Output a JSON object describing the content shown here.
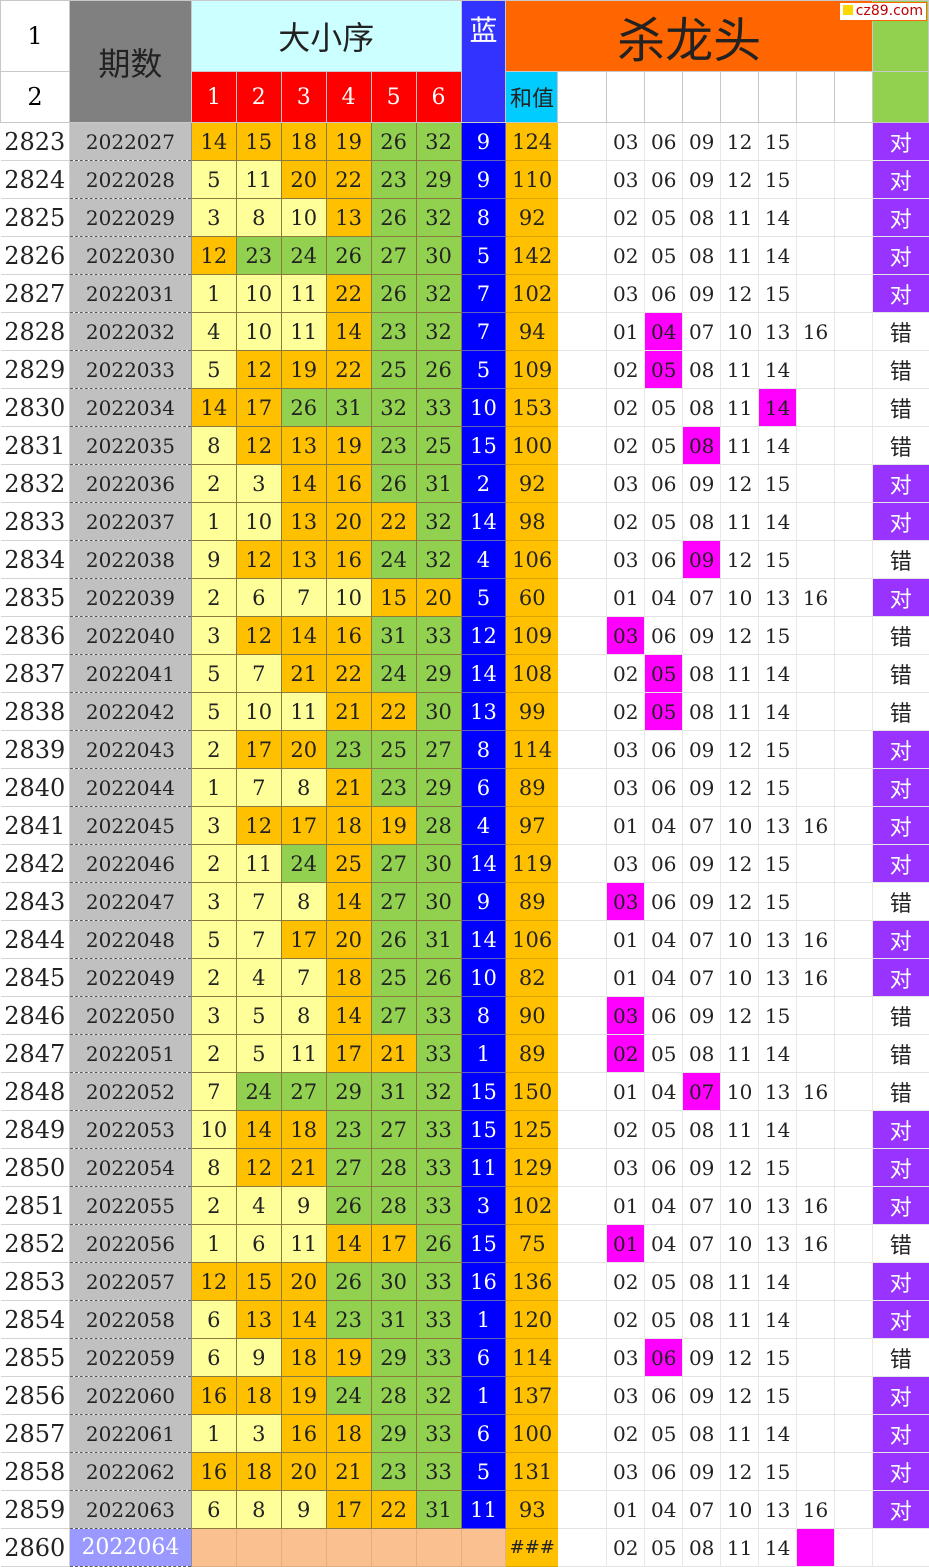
{
  "header": {
    "row1_num": "1",
    "row2_num": "2",
    "period_label": "期数",
    "size_order_label": "大小序",
    "ball_cols": [
      "1",
      "2",
      "3",
      "4",
      "5",
      "6"
    ],
    "blue_label": "蓝",
    "sum_label": "和值",
    "kill_title": "杀龙头",
    "watermark": "cz89.com"
  },
  "colors": {
    "yellow": "#ffff99",
    "orange": "#ffc000",
    "green": "#92d050",
    "blue": "#0000ff",
    "magenta_hit": "#ff00ff",
    "purple_ok": "#9933ff",
    "header_orange": "#ff6600",
    "header_red": "#ff0000",
    "header_cyan": "#ccffff"
  },
  "rows": [
    {
      "n": "2823",
      "period": "2022027",
      "balls": [
        "14",
        "15",
        "18",
        "19",
        "26",
        "32"
      ],
      "bc": [
        "o",
        "o",
        "o",
        "o",
        "g",
        "g"
      ],
      "blue": "9",
      "sum": "124",
      "kill": [
        "03",
        "06",
        "09",
        "12",
        "15",
        ""
      ],
      "hit": -1,
      "result": "对"
    },
    {
      "n": "2824",
      "period": "2022028",
      "balls": [
        "5",
        "11",
        "20",
        "22",
        "23",
        "29"
      ],
      "bc": [
        "y",
        "y",
        "o",
        "o",
        "g",
        "g"
      ],
      "blue": "9",
      "sum": "110",
      "kill": [
        "03",
        "06",
        "09",
        "12",
        "15",
        ""
      ],
      "hit": -1,
      "result": "对"
    },
    {
      "n": "2825",
      "period": "2022029",
      "balls": [
        "3",
        "8",
        "10",
        "13",
        "26",
        "32"
      ],
      "bc": [
        "y",
        "y",
        "y",
        "o",
        "g",
        "g"
      ],
      "blue": "8",
      "sum": "92",
      "kill": [
        "02",
        "05",
        "08",
        "11",
        "14",
        ""
      ],
      "hit": -1,
      "result": "对"
    },
    {
      "n": "2826",
      "period": "2022030",
      "balls": [
        "12",
        "23",
        "24",
        "26",
        "27",
        "30"
      ],
      "bc": [
        "o",
        "g",
        "g",
        "g",
        "g",
        "g"
      ],
      "blue": "5",
      "sum": "142",
      "kill": [
        "02",
        "05",
        "08",
        "11",
        "14",
        ""
      ],
      "hit": -1,
      "result": "对"
    },
    {
      "n": "2827",
      "period": "2022031",
      "balls": [
        "1",
        "10",
        "11",
        "22",
        "26",
        "32"
      ],
      "bc": [
        "y",
        "y",
        "y",
        "o",
        "g",
        "g"
      ],
      "blue": "7",
      "sum": "102",
      "kill": [
        "03",
        "06",
        "09",
        "12",
        "15",
        ""
      ],
      "hit": -1,
      "result": "对"
    },
    {
      "n": "2828",
      "period": "2022032",
      "balls": [
        "4",
        "10",
        "11",
        "14",
        "23",
        "32"
      ],
      "bc": [
        "y",
        "y",
        "y",
        "o",
        "g",
        "g"
      ],
      "blue": "7",
      "sum": "94",
      "kill": [
        "01",
        "04",
        "07",
        "10",
        "13",
        "16"
      ],
      "hit": 1,
      "result": "错"
    },
    {
      "n": "2829",
      "period": "2022033",
      "balls": [
        "5",
        "12",
        "19",
        "22",
        "25",
        "26"
      ],
      "bc": [
        "y",
        "o",
        "o",
        "o",
        "g",
        "g"
      ],
      "blue": "5",
      "sum": "109",
      "kill": [
        "02",
        "05",
        "08",
        "11",
        "14",
        ""
      ],
      "hit": 1,
      "result": "错"
    },
    {
      "n": "2830",
      "period": "2022034",
      "balls": [
        "14",
        "17",
        "26",
        "31",
        "32",
        "33"
      ],
      "bc": [
        "o",
        "o",
        "g",
        "g",
        "g",
        "g"
      ],
      "blue": "10",
      "sum": "153",
      "kill": [
        "02",
        "05",
        "08",
        "11",
        "14",
        ""
      ],
      "hit": 4,
      "result": "错"
    },
    {
      "n": "2831",
      "period": "2022035",
      "balls": [
        "8",
        "12",
        "13",
        "19",
        "23",
        "25"
      ],
      "bc": [
        "y",
        "o",
        "o",
        "o",
        "g",
        "g"
      ],
      "blue": "15",
      "sum": "100",
      "kill": [
        "02",
        "05",
        "08",
        "11",
        "14",
        ""
      ],
      "hit": 2,
      "result": "错"
    },
    {
      "n": "2832",
      "period": "2022036",
      "balls": [
        "2",
        "3",
        "14",
        "16",
        "26",
        "31"
      ],
      "bc": [
        "y",
        "y",
        "o",
        "o",
        "g",
        "g"
      ],
      "blue": "2",
      "sum": "92",
      "kill": [
        "03",
        "06",
        "09",
        "12",
        "15",
        ""
      ],
      "hit": -1,
      "result": "对"
    },
    {
      "n": "2833",
      "period": "2022037",
      "balls": [
        "1",
        "10",
        "13",
        "20",
        "22",
        "32"
      ],
      "bc": [
        "y",
        "y",
        "o",
        "o",
        "o",
        "g"
      ],
      "blue": "14",
      "sum": "98",
      "kill": [
        "02",
        "05",
        "08",
        "11",
        "14",
        ""
      ],
      "hit": -1,
      "result": "对"
    },
    {
      "n": "2834",
      "period": "2022038",
      "balls": [
        "9",
        "12",
        "13",
        "16",
        "24",
        "32"
      ],
      "bc": [
        "y",
        "o",
        "o",
        "o",
        "g",
        "g"
      ],
      "blue": "4",
      "sum": "106",
      "kill": [
        "03",
        "06",
        "09",
        "12",
        "15",
        ""
      ],
      "hit": 2,
      "result": "错"
    },
    {
      "n": "2835",
      "period": "2022039",
      "balls": [
        "2",
        "6",
        "7",
        "10",
        "15",
        "20"
      ],
      "bc": [
        "y",
        "y",
        "y",
        "y",
        "o",
        "o"
      ],
      "blue": "5",
      "sum": "60",
      "kill": [
        "01",
        "04",
        "07",
        "10",
        "13",
        "16"
      ],
      "hit": -1,
      "result": "对"
    },
    {
      "n": "2836",
      "period": "2022040",
      "balls": [
        "3",
        "12",
        "14",
        "16",
        "31",
        "33"
      ],
      "bc": [
        "y",
        "o",
        "o",
        "o",
        "g",
        "g"
      ],
      "blue": "12",
      "sum": "109",
      "kill": [
        "03",
        "06",
        "09",
        "12",
        "15",
        ""
      ],
      "hit": 0,
      "result": "错"
    },
    {
      "n": "2837",
      "period": "2022041",
      "balls": [
        "5",
        "7",
        "21",
        "22",
        "24",
        "29"
      ],
      "bc": [
        "y",
        "y",
        "o",
        "o",
        "g",
        "g"
      ],
      "blue": "14",
      "sum": "108",
      "kill": [
        "02",
        "05",
        "08",
        "11",
        "14",
        ""
      ],
      "hit": 1,
      "result": "错"
    },
    {
      "n": "2838",
      "period": "2022042",
      "balls": [
        "5",
        "10",
        "11",
        "21",
        "22",
        "30"
      ],
      "bc": [
        "y",
        "y",
        "y",
        "o",
        "o",
        "g"
      ],
      "blue": "13",
      "sum": "99",
      "kill": [
        "02",
        "05",
        "08",
        "11",
        "14",
        ""
      ],
      "hit": 1,
      "result": "错"
    },
    {
      "n": "2839",
      "period": "2022043",
      "balls": [
        "2",
        "17",
        "20",
        "23",
        "25",
        "27"
      ],
      "bc": [
        "y",
        "o",
        "o",
        "g",
        "g",
        "g"
      ],
      "blue": "8",
      "sum": "114",
      "kill": [
        "03",
        "06",
        "09",
        "12",
        "15",
        ""
      ],
      "hit": -1,
      "result": "对"
    },
    {
      "n": "2840",
      "period": "2022044",
      "balls": [
        "1",
        "7",
        "8",
        "21",
        "23",
        "29"
      ],
      "bc": [
        "y",
        "y",
        "y",
        "o",
        "g",
        "g"
      ],
      "blue": "6",
      "sum": "89",
      "kill": [
        "03",
        "06",
        "09",
        "12",
        "15",
        ""
      ],
      "hit": -1,
      "result": "对"
    },
    {
      "n": "2841",
      "period": "2022045",
      "balls": [
        "3",
        "12",
        "17",
        "18",
        "19",
        "28"
      ],
      "bc": [
        "y",
        "o",
        "o",
        "o",
        "o",
        "g"
      ],
      "blue": "4",
      "sum": "97",
      "kill": [
        "01",
        "04",
        "07",
        "10",
        "13",
        "16"
      ],
      "hit": -1,
      "result": "对"
    },
    {
      "n": "2842",
      "period": "2022046",
      "balls": [
        "2",
        "11",
        "24",
        "25",
        "27",
        "30"
      ],
      "bc": [
        "y",
        "y",
        "g",
        "o",
        "g",
        "g"
      ],
      "blue": "14",
      "sum": "119",
      "kill": [
        "03",
        "06",
        "09",
        "12",
        "15",
        ""
      ],
      "hit": -1,
      "result": "对"
    },
    {
      "n": "2843",
      "period": "2022047",
      "balls": [
        "3",
        "7",
        "8",
        "14",
        "27",
        "30"
      ],
      "bc": [
        "y",
        "y",
        "y",
        "o",
        "g",
        "g"
      ],
      "blue": "9",
      "sum": "89",
      "kill": [
        "03",
        "06",
        "09",
        "12",
        "15",
        ""
      ],
      "hit": 0,
      "result": "错"
    },
    {
      "n": "2844",
      "period": "2022048",
      "balls": [
        "5",
        "7",
        "17",
        "20",
        "26",
        "31"
      ],
      "bc": [
        "y",
        "y",
        "o",
        "o",
        "g",
        "g"
      ],
      "blue": "14",
      "sum": "106",
      "kill": [
        "01",
        "04",
        "07",
        "10",
        "13",
        "16"
      ],
      "hit": -1,
      "result": "对"
    },
    {
      "n": "2845",
      "period": "2022049",
      "balls": [
        "2",
        "4",
        "7",
        "18",
        "25",
        "26"
      ],
      "bc": [
        "y",
        "y",
        "y",
        "o",
        "g",
        "g"
      ],
      "blue": "10",
      "sum": "82",
      "kill": [
        "01",
        "04",
        "07",
        "10",
        "13",
        "16"
      ],
      "hit": -1,
      "result": "对"
    },
    {
      "n": "2846",
      "period": "2022050",
      "balls": [
        "3",
        "5",
        "8",
        "14",
        "27",
        "33"
      ],
      "bc": [
        "y",
        "y",
        "y",
        "o",
        "g",
        "g"
      ],
      "blue": "8",
      "sum": "90",
      "kill": [
        "03",
        "06",
        "09",
        "12",
        "15",
        ""
      ],
      "hit": 0,
      "result": "错"
    },
    {
      "n": "2847",
      "period": "2022051",
      "balls": [
        "2",
        "5",
        "11",
        "17",
        "21",
        "33"
      ],
      "bc": [
        "y",
        "y",
        "y",
        "o",
        "o",
        "g"
      ],
      "blue": "1",
      "sum": "89",
      "kill": [
        "02",
        "05",
        "08",
        "11",
        "14",
        ""
      ],
      "hit": 0,
      "result": "错"
    },
    {
      "n": "2848",
      "period": "2022052",
      "balls": [
        "7",
        "24",
        "27",
        "29",
        "31",
        "32"
      ],
      "bc": [
        "y",
        "g",
        "g",
        "g",
        "g",
        "g"
      ],
      "blue": "15",
      "sum": "150",
      "kill": [
        "01",
        "04",
        "07",
        "10",
        "13",
        "16"
      ],
      "hit": 2,
      "result": "错"
    },
    {
      "n": "2849",
      "period": "2022053",
      "balls": [
        "10",
        "14",
        "18",
        "23",
        "27",
        "33"
      ],
      "bc": [
        "y",
        "o",
        "o",
        "g",
        "g",
        "g"
      ],
      "blue": "15",
      "sum": "125",
      "kill": [
        "02",
        "05",
        "08",
        "11",
        "14",
        ""
      ],
      "hit": -1,
      "result": "对"
    },
    {
      "n": "2850",
      "period": "2022054",
      "balls": [
        "8",
        "12",
        "21",
        "27",
        "28",
        "33"
      ],
      "bc": [
        "y",
        "o",
        "o",
        "g",
        "g",
        "g"
      ],
      "blue": "11",
      "sum": "129",
      "kill": [
        "03",
        "06",
        "09",
        "12",
        "15",
        ""
      ],
      "hit": -1,
      "result": "对"
    },
    {
      "n": "2851",
      "period": "2022055",
      "balls": [
        "2",
        "4",
        "9",
        "26",
        "28",
        "33"
      ],
      "bc": [
        "y",
        "y",
        "y",
        "g",
        "g",
        "g"
      ],
      "blue": "3",
      "sum": "102",
      "kill": [
        "01",
        "04",
        "07",
        "10",
        "13",
        "16"
      ],
      "hit": -1,
      "result": "对"
    },
    {
      "n": "2852",
      "period": "2022056",
      "balls": [
        "1",
        "6",
        "11",
        "14",
        "17",
        "26"
      ],
      "bc": [
        "y",
        "y",
        "y",
        "o",
        "o",
        "g"
      ],
      "blue": "15",
      "sum": "75",
      "kill": [
        "01",
        "04",
        "07",
        "10",
        "13",
        "16"
      ],
      "hit": 0,
      "result": "错"
    },
    {
      "n": "2853",
      "period": "2022057",
      "balls": [
        "12",
        "15",
        "20",
        "26",
        "30",
        "33"
      ],
      "bc": [
        "o",
        "o",
        "o",
        "g",
        "g",
        "g"
      ],
      "blue": "16",
      "sum": "136",
      "kill": [
        "02",
        "05",
        "08",
        "11",
        "14",
        ""
      ],
      "hit": -1,
      "result": "对"
    },
    {
      "n": "2854",
      "period": "2022058",
      "balls": [
        "6",
        "13",
        "14",
        "23",
        "31",
        "33"
      ],
      "bc": [
        "y",
        "o",
        "o",
        "g",
        "g",
        "g"
      ],
      "blue": "1",
      "sum": "120",
      "kill": [
        "02",
        "05",
        "08",
        "11",
        "14",
        ""
      ],
      "hit": -1,
      "result": "对"
    },
    {
      "n": "2855",
      "period": "2022059",
      "balls": [
        "6",
        "9",
        "18",
        "19",
        "29",
        "33"
      ],
      "bc": [
        "y",
        "y",
        "o",
        "o",
        "g",
        "g"
      ],
      "blue": "6",
      "sum": "114",
      "kill": [
        "03",
        "06",
        "09",
        "12",
        "15",
        ""
      ],
      "hit": 1,
      "result": "错"
    },
    {
      "n": "2856",
      "period": "2022060",
      "balls": [
        "16",
        "18",
        "19",
        "24",
        "28",
        "32"
      ],
      "bc": [
        "o",
        "o",
        "o",
        "g",
        "g",
        "g"
      ],
      "blue": "1",
      "sum": "137",
      "kill": [
        "03",
        "06",
        "09",
        "12",
        "15",
        ""
      ],
      "hit": -1,
      "result": "对"
    },
    {
      "n": "2857",
      "period": "2022061",
      "balls": [
        "1",
        "3",
        "16",
        "18",
        "29",
        "33"
      ],
      "bc": [
        "y",
        "y",
        "o",
        "o",
        "g",
        "g"
      ],
      "blue": "6",
      "sum": "100",
      "kill": [
        "02",
        "05",
        "08",
        "11",
        "14",
        ""
      ],
      "hit": -1,
      "result": "对"
    },
    {
      "n": "2858",
      "period": "2022062",
      "balls": [
        "16",
        "18",
        "20",
        "21",
        "23",
        "33"
      ],
      "bc": [
        "o",
        "o",
        "o",
        "o",
        "g",
        "g"
      ],
      "blue": "5",
      "sum": "131",
      "kill": [
        "03",
        "06",
        "09",
        "12",
        "15",
        ""
      ],
      "hit": -1,
      "result": "对"
    },
    {
      "n": "2859",
      "period": "2022063",
      "balls": [
        "6",
        "8",
        "9",
        "17",
        "22",
        "31"
      ],
      "bc": [
        "y",
        "y",
        "y",
        "o",
        "o",
        "g"
      ],
      "blue": "11",
      "sum": "93",
      "kill": [
        "01",
        "04",
        "07",
        "10",
        "13",
        "16"
      ],
      "hit": -1,
      "result": "对"
    }
  ],
  "last_row": {
    "n": "2860",
    "period": "2022064",
    "sum": "###",
    "kill": [
      "02",
      "05",
      "08",
      "11",
      "14",
      ""
    ],
    "hit": 5
  }
}
